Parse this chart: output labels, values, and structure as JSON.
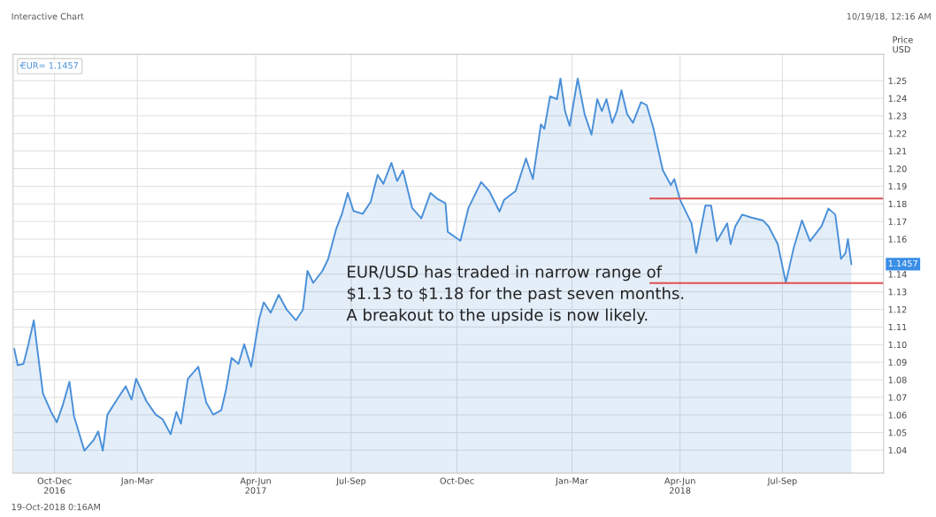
{
  "chart_data": {
    "type": "area",
    "annotations": [
      "Interactive Chart",
      "10/19/18, 12:16 AM",
      "19-Oct-2018 0:16AM",
      "EUR/USD has traded in narrow range of\n$1.13 to $1.18 for the past seven months.\nA breakout to the upside is now likely.",
      "1.1457"
    ],
    "ylabel": "Price\nUSD",
    "series": [
      {
        "name": "EUR= 1.1457",
        "color": "#4a90d9",
        "x": [
          "2016-10-21",
          "2016-10-24",
          "2016-10-29",
          "2016-11-02",
          "2016-11-07",
          "2016-11-11",
          "2016-11-15",
          "2016-11-22",
          "2016-11-27",
          "2016-12-02",
          "2016-12-08",
          "2016-12-12",
          "2016-12-21",
          "2016-12-29",
          "2017-01-02",
          "2017-01-06",
          "2017-01-10",
          "2017-01-20",
          "2017-01-26",
          "2017-01-31",
          "2017-02-04",
          "2017-02-13",
          "2017-02-21",
          "2017-02-27",
          "2017-03-06",
          "2017-03-11",
          "2017-03-15",
          "2017-03-21",
          "2017-03-30",
          "2017-04-06",
          "2017-04-12",
          "2017-04-19",
          "2017-04-23",
          "2017-04-28",
          "2017-05-04",
          "2017-05-09",
          "2017-05-15",
          "2017-05-22",
          "2017-05-26",
          "2017-06-01",
          "2017-06-08",
          "2017-06-15",
          "2017-06-23",
          "2017-06-29",
          "2017-07-03",
          "2017-07-08",
          "2017-07-16",
          "2017-07-21",
          "2017-07-28",
          "2017-08-02",
          "2017-08-07",
          "2017-08-12",
          "2017-08-20",
          "2017-08-27",
          "2017-09-02",
          "2017-09-07",
          "2017-09-14",
          "2017-09-19",
          "2017-09-24",
          "2017-10-02",
          "2017-10-10",
          "2017-10-18",
          "2017-10-24",
          "2017-10-31",
          "2017-11-02",
          "2017-11-13",
          "2017-11-20",
          "2017-12-01",
          "2017-12-08",
          "2017-12-17",
          "2017-12-21",
          "2017-12-31",
          "2018-01-09",
          "2018-01-15",
          "2018-01-22",
          "2018-01-25",
          "2018-01-30",
          "2018-02-05",
          "2018-02-08",
          "2018-02-12",
          "2018-02-16",
          "2018-02-23",
          "2018-03-01",
          "2018-03-07",
          "2018-03-12",
          "2018-03-16",
          "2018-03-20",
          "2018-03-25",
          "2018-03-29",
          "2018-04-02",
          "2018-04-07",
          "2018-04-12",
          "2018-04-19",
          "2018-04-24",
          "2018-04-30",
          "2018-05-08",
          "2018-05-15",
          "2018-05-18",
          "2018-05-23",
          "2018-06-02",
          "2018-06-06",
          "2018-06-14",
          "2018-06-19",
          "2018-06-24",
          "2018-07-03",
          "2018-07-06",
          "2018-07-10",
          "2018-07-16",
          "2018-07-24",
          "2018-08-03",
          "2018-08-08",
          "2018-08-16",
          "2018-08-23",
          "2018-08-30",
          "2018-09-06",
          "2018-09-13",
          "2018-09-23",
          "2018-09-29",
          "2018-10-05",
          "2018-10-10",
          "2018-10-14",
          "2018-10-16",
          "2018-10-19"
        ],
        "values": [
          1.0976,
          1.0883,
          1.0891,
          1.0993,
          1.1138,
          1.0925,
          1.0721,
          1.0618,
          1.0559,
          1.0652,
          1.0789,
          1.0593,
          1.0397,
          1.0457,
          1.0507,
          1.0397,
          1.0602,
          1.0704,
          1.0763,
          1.0687,
          1.0806,
          1.0678,
          1.0602,
          1.0576,
          1.0491,
          1.0618,
          1.055,
          1.0806,
          1.0874,
          1.067,
          1.0602,
          1.0627,
          1.0738,
          1.0925,
          1.0891,
          1.1002,
          1.0874,
          1.1147,
          1.124,
          1.1181,
          1.1283,
          1.1198,
          1.1138,
          1.1198,
          1.1419,
          1.1351,
          1.1419,
          1.1487,
          1.1658,
          1.1743,
          1.1862,
          1.176,
          1.1743,
          1.1811,
          1.1965,
          1.1914,
          1.2033,
          1.193,
          1.199,
          1.1777,
          1.1718,
          1.1862,
          1.1828,
          1.1803,
          1.1641,
          1.159,
          1.1777,
          1.1924,
          1.1873,
          1.1756,
          1.1823,
          1.1873,
          1.2058,
          1.1941,
          1.2252,
          1.2226,
          1.2411,
          1.2395,
          1.2512,
          1.2327,
          1.2243,
          1.2512,
          1.231,
          1.2193,
          1.2395,
          1.2327,
          1.2395,
          1.226,
          1.2327,
          1.2445,
          1.231,
          1.226,
          1.2378,
          1.2361,
          1.2226,
          1.1991,
          1.1907,
          1.1941,
          1.1823,
          1.1689,
          1.1521,
          1.179,
          1.179,
          1.1588,
          1.1689,
          1.1571,
          1.1672,
          1.1739,
          1.1722,
          1.1706,
          1.1672,
          1.1571,
          1.1353,
          1.1554,
          1.1706,
          1.1588,
          1.1672,
          1.1773,
          1.1739,
          1.1487,
          1.1521,
          1.16,
          1.1457
        ]
      },
      {
        "color": "#e05050",
        "type": "line",
        "x": [
          "2018-04-27",
          "2018-11-16"
        ],
        "values": [
          1.183,
          1.183
        ]
      },
      {
        "color": "#e05050",
        "type": "line",
        "x": [
          "2018-04-27",
          "2018-11-16"
        ],
        "values": [
          1.135,
          1.135
        ]
      }
    ],
    "xlim": [
      "2016-10-20",
      "2018-11-16"
    ],
    "xticks": [
      {
        "value": "2016-11-25",
        "label": "Oct-Dec\n2016"
      },
      {
        "value": "2017-02-05",
        "label": "Jan-Mar"
      },
      {
        "value": "2017-05-19",
        "label": "Apr-Jun\n2017"
      },
      {
        "value": "2017-08-10",
        "label": "Jul-Sep"
      },
      {
        "value": "2017-11-10",
        "label": "Oct-Dec"
      },
      {
        "value": "2018-02-18",
        "label": "Jan-Mar"
      },
      {
        "value": "2018-05-23",
        "label": "Apr-Jun\n2018"
      },
      {
        "value": "2018-08-20",
        "label": "Jul-Sep"
      }
    ],
    "ylim": [
      1.027,
      1.265
    ],
    "yticks": [
      {
        "value": 1.04,
        "label": "1.04"
      },
      {
        "value": 1.05,
        "label": "1.05"
      },
      {
        "value": 1.06,
        "label": "1.06"
      },
      {
        "value": 1.07,
        "label": "1.07"
      },
      {
        "value": 1.08,
        "label": "1.08"
      },
      {
        "value": 1.09,
        "label": "1.09"
      },
      {
        "value": 1.1,
        "label": "1.10"
      },
      {
        "value": 1.11,
        "label": "1.11"
      },
      {
        "value": 1.12,
        "label": "1.12"
      },
      {
        "value": 1.13,
        "label": "1.13"
      },
      {
        "value": 1.14,
        "label": "1.14"
      },
      {
        "value": 1.15,
        "label": null
      },
      {
        "value": 1.16,
        "label": "1.16"
      },
      {
        "value": 1.17,
        "label": "1.17"
      },
      {
        "value": 1.18,
        "label": "1.18"
      },
      {
        "value": 1.19,
        "label": "1.19"
      },
      {
        "value": 1.2,
        "label": "1.20"
      },
      {
        "value": 1.21,
        "label": "1.21"
      },
      {
        "value": 1.22,
        "label": "1.22"
      },
      {
        "value": 1.23,
        "label": "1.23"
      },
      {
        "value": 1.24,
        "label": "1.24"
      },
      {
        "value": 1.25,
        "label": "1.25"
      }
    ],
    "grid": true,
    "legend": "top left"
  }
}
